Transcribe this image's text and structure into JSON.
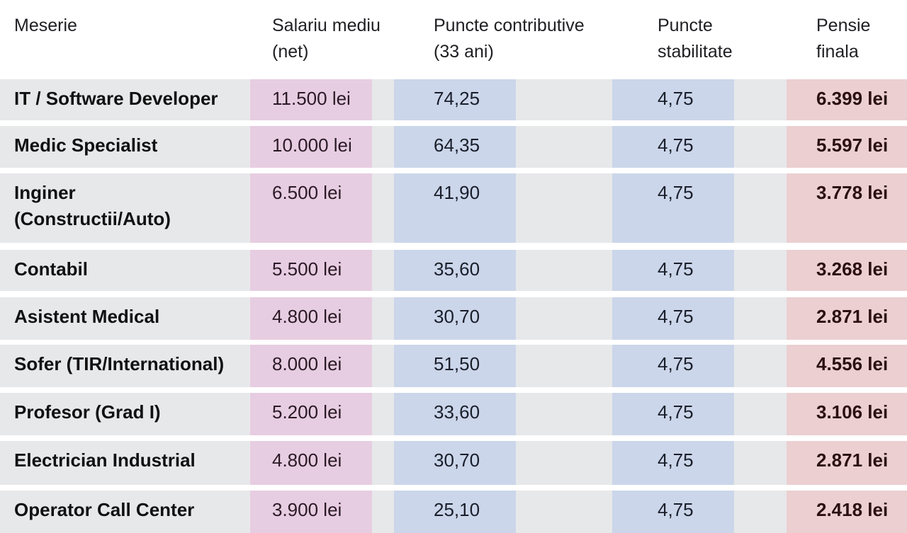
{
  "table": {
    "headers": [
      {
        "line1": "Meserie",
        "line2": ""
      },
      {
        "line1": "Salariu mediu",
        "line2": "(net)"
      },
      {
        "line1": "Puncte contributive",
        "line2": "(33 ani)"
      },
      {
        "line1": "Puncte",
        "line2": "stabilitate"
      },
      {
        "line1": "Pensie",
        "line2": "finala"
      }
    ],
    "rows": [
      {
        "name_1": "IT / Software Developer",
        "name_2": "",
        "salary": "11.500 lei",
        "contrib": "74,25",
        "stab": "4,75",
        "pension": "6.399 lei"
      },
      {
        "name_1": "Medic Specialist",
        "name_2": "",
        "salary": "10.000 lei",
        "contrib": "64,35",
        "stab": "4,75",
        "pension": "5.597 lei"
      },
      {
        "name_1": "Inginer",
        "name_2": "(Constructii/Auto)",
        "salary": "6.500 lei",
        "contrib": "41,90",
        "stab": "4,75",
        "pension": "3.778 lei"
      },
      {
        "name_1": "Contabil",
        "name_2": "",
        "salary": "5.500 lei",
        "contrib": "35,60",
        "stab": "4,75",
        "pension": "3.268 lei"
      },
      {
        "name_1": "Asistent Medical",
        "name_2": "",
        "salary": "4.800 lei",
        "contrib": "30,70",
        "stab": "4,75",
        "pension": "2.871 lei"
      },
      {
        "name_1": "Sofer (TIR/International)",
        "name_2": "",
        "salary": "8.000 lei",
        "contrib": "51,50",
        "stab": "4,75",
        "pension": "4.556 lei"
      },
      {
        "name_1": "Profesor (Grad I)",
        "name_2": "",
        "salary": "5.200 lei",
        "contrib": "33,60",
        "stab": "4,75",
        "pension": "3.106 lei"
      },
      {
        "name_1": "Electrician Industrial",
        "name_2": "",
        "salary": "4.800 lei",
        "contrib": "30,70",
        "stab": "4,75",
        "pension": "2.871 lei"
      },
      {
        "name_1": "Operator Call Center",
        "name_2": "",
        "salary": "3.900 lei",
        "contrib": "25,10",
        "stab": "4,75",
        "pension": "2.418 lei"
      }
    ]
  },
  "colors": {
    "row_bg": "#e7e8ea",
    "salary_band": "#e7cde1",
    "points_band": "#cbd6ea",
    "pension_band": "#ebcfd1"
  }
}
